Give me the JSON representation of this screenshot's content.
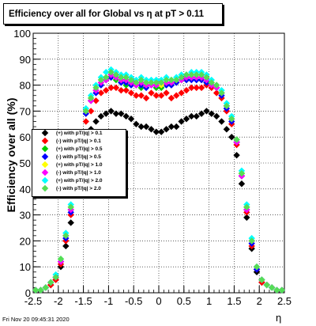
{
  "title": "Efficiency over all for Global vs   η at pT > 0.11",
  "footer": "Fri Nov 20 09:45:31 2020",
  "chart_data": {
    "type": "scatter",
    "xlabel": "η",
    "ylabel": "Efficiency over all (%)",
    "xlim": [
      -2.5,
      2.5
    ],
    "ylim": [
      0,
      100
    ],
    "xticks": [
      "-2.5",
      "-2",
      "-1.5",
      "-1",
      "-0.5",
      "0",
      "0.5",
      "1",
      "1.5",
      "2",
      "2.5"
    ],
    "yticks": [
      "0",
      "10",
      "20",
      "30",
      "40",
      "50",
      "60",
      "70",
      "80",
      "90",
      "100"
    ],
    "grid": true,
    "legend_position": "left-middle",
    "x": [
      -2.45,
      -2.35,
      -2.25,
      -2.15,
      -2.05,
      -1.95,
      -1.85,
      -1.75,
      -1.65,
      -1.55,
      -1.45,
      -1.35,
      -1.25,
      -1.15,
      -1.05,
      -0.95,
      -0.85,
      -0.75,
      -0.65,
      -0.55,
      -0.45,
      -0.35,
      -0.25,
      -0.15,
      -0.05,
      0.05,
      0.15,
      0.25,
      0.35,
      0.45,
      0.55,
      0.65,
      0.75,
      0.85,
      0.95,
      1.05,
      1.15,
      1.25,
      1.35,
      1.45,
      1.55,
      1.65,
      1.75,
      1.85,
      1.95,
      2.05,
      2.15,
      2.25,
      2.35,
      2.45
    ],
    "series": [
      {
        "name": "(+) with pT/|q| > 0.1",
        "color": "#000000",
        "values": [
          1,
          1,
          2,
          3,
          5,
          10,
          18,
          27,
          40,
          52,
          60,
          63,
          66,
          68,
          69,
          70,
          69,
          69,
          68,
          67,
          65,
          64,
          64,
          63,
          62,
          62,
          63,
          64,
          64,
          66,
          67,
          68,
          68,
          69,
          70,
          69,
          68,
          66,
          63,
          60,
          53,
          42,
          29,
          17,
          8,
          4,
          3,
          2,
          1,
          1
        ]
      },
      {
        "name": "(-) with pT/|q| > 0.1",
        "color": "#ff0000",
        "values": [
          1,
          1,
          2,
          3,
          5,
          11,
          20,
          30,
          45,
          57,
          66,
          70,
          74,
          77,
          78,
          79,
          79,
          78,
          78,
          77,
          76,
          76,
          75,
          77,
          76,
          76,
          77,
          75,
          76,
          77,
          78,
          79,
          79,
          79,
          80,
          79,
          77,
          75,
          70,
          65,
          57,
          45,
          31,
          18,
          9,
          4,
          3,
          2,
          1,
          1
        ]
      },
      {
        "name": "(+) with pT/|q| > 0.5",
        "color": "#00cc00",
        "values": [
          1,
          1,
          2,
          4,
          6,
          12,
          22,
          32,
          48,
          60,
          70,
          74,
          78,
          80,
          82,
          83,
          82,
          81,
          80,
          80,
          80,
          79,
          80,
          80,
          79,
          79,
          80,
          80,
          81,
          82,
          82,
          83,
          82,
          82,
          81,
          80,
          79,
          77,
          72,
          67,
          58,
          46,
          33,
          20,
          10,
          5,
          3,
          2,
          1,
          1
        ]
      },
      {
        "name": "(-) with pT/|q| > 0.5",
        "color": "#0000ff",
        "values": [
          1,
          1,
          2,
          4,
          6,
          12,
          21,
          31,
          47,
          59,
          69,
          74,
          77,
          80,
          82,
          83,
          83,
          81,
          81,
          80,
          80,
          80,
          79,
          80,
          80,
          80,
          80,
          80,
          81,
          82,
          82,
          82,
          82,
          82,
          81,
          80,
          79,
          76,
          71,
          66,
          58,
          45,
          32,
          19,
          9,
          5,
          3,
          2,
          1,
          1
        ]
      },
      {
        "name": "(+) with pT/|q| > 1.0",
        "color": "#ffff00",
        "values": [
          1,
          1,
          2,
          4,
          6,
          13,
          22,
          33,
          48,
          60,
          70,
          75,
          78,
          81,
          83,
          84,
          83,
          82,
          82,
          81,
          81,
          81,
          80,
          81,
          81,
          80,
          81,
          81,
          82,
          82,
          83,
          83,
          83,
          83,
          82,
          81,
          79,
          77,
          72,
          67,
          59,
          46,
          33,
          20,
          10,
          5,
          3,
          2,
          1,
          1
        ]
      },
      {
        "name": "(-) with pT/|q| > 1.0",
        "color": "#ff00ff",
        "values": [
          1,
          1,
          2,
          4,
          6,
          12,
          22,
          32,
          47,
          60,
          70,
          74,
          78,
          81,
          82,
          84,
          83,
          82,
          82,
          81,
          80,
          81,
          80,
          80,
          80,
          81,
          81,
          81,
          82,
          82,
          83,
          83,
          83,
          83,
          82,
          80,
          79,
          77,
          72,
          67,
          58,
          45,
          32,
          20,
          10,
          5,
          3,
          2,
          1,
          1
        ]
      },
      {
        "name": "(+) with pT/|q| > 2.0",
        "color": "#00ffff",
        "values": [
          1,
          1,
          2,
          4,
          7,
          13,
          23,
          34,
          49,
          61,
          71,
          76,
          80,
          83,
          85,
          86,
          85,
          84,
          84,
          83,
          82,
          83,
          82,
          82,
          82,
          82,
          83,
          82,
          83,
          84,
          84,
          85,
          85,
          85,
          84,
          82,
          80,
          78,
          73,
          68,
          59,
          47,
          34,
          21,
          10,
          5,
          3,
          2,
          1,
          1
        ]
      },
      {
        "name": "(-) with pT/|q| > 2.0",
        "color": "#55dd55",
        "values": [
          1,
          1,
          2,
          4,
          6,
          13,
          22,
          33,
          48,
          60,
          70,
          75,
          79,
          82,
          83,
          85,
          84,
          83,
          83,
          82,
          81,
          82,
          81,
          81,
          81,
          81,
          82,
          82,
          82,
          83,
          84,
          84,
          84,
          84,
          83,
          81,
          80,
          77,
          72,
          67,
          59,
          46,
          33,
          20,
          10,
          5,
          3,
          2,
          1,
          1
        ]
      }
    ]
  }
}
